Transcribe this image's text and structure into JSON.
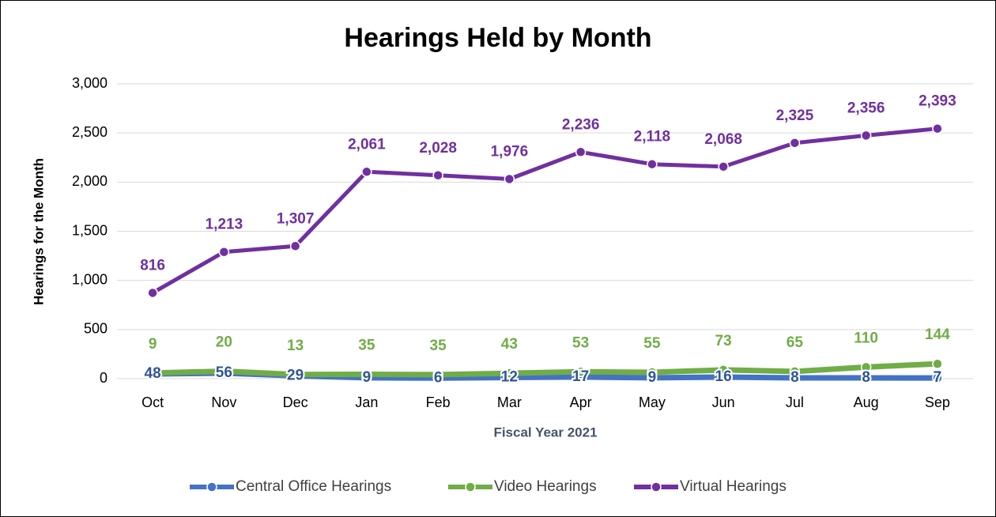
{
  "chart_data": {
    "type": "line",
    "stacked": true,
    "title": "Hearings Held by Month",
    "x_label": "Fiscal Year 2021",
    "y_label": "Hearings for the Month",
    "categories": [
      "Oct",
      "Nov",
      "Dec",
      "Jan",
      "Feb",
      "Mar",
      "Apr",
      "May",
      "Jun",
      "Jul",
      "Aug",
      "Sep"
    ],
    "series": [
      {
        "name": "Central Office Hearings",
        "color": "#4472c4",
        "values": [
          48,
          56,
          29,
          9,
          6,
          12,
          17,
          9,
          16,
          8,
          8,
          7
        ]
      },
      {
        "name": "Video Hearings",
        "color": "#70ad47",
        "values": [
          9,
          20,
          13,
          35,
          35,
          43,
          53,
          55,
          73,
          65,
          110,
          144
        ]
      },
      {
        "name": "Virtual Hearings",
        "color": "#7030a0",
        "values": [
          816,
          1213,
          1307,
          2061,
          2028,
          1976,
          2236,
          2118,
          2068,
          2325,
          2356,
          2393
        ],
        "value_labels": [
          "816",
          "1,213",
          "1,307",
          "2,061",
          "2,028",
          "1,976",
          "2,236",
          "2,118",
          "2,068",
          "2,325",
          "2,356",
          "2,393"
        ]
      }
    ],
    "ylim": [
      0,
      3000
    ],
    "yticks": [
      0,
      500,
      {
        "value": 1000,
        "label": "1,000"
      },
      {
        "value": 1500,
        "label": "1,500"
      },
      {
        "value": 2000,
        "label": "2,000"
      },
      {
        "value": 2500,
        "label": "2,500"
      },
      {
        "value": 3000,
        "label": "3,000"
      }
    ],
    "grid": true,
    "legend": "bottom"
  }
}
